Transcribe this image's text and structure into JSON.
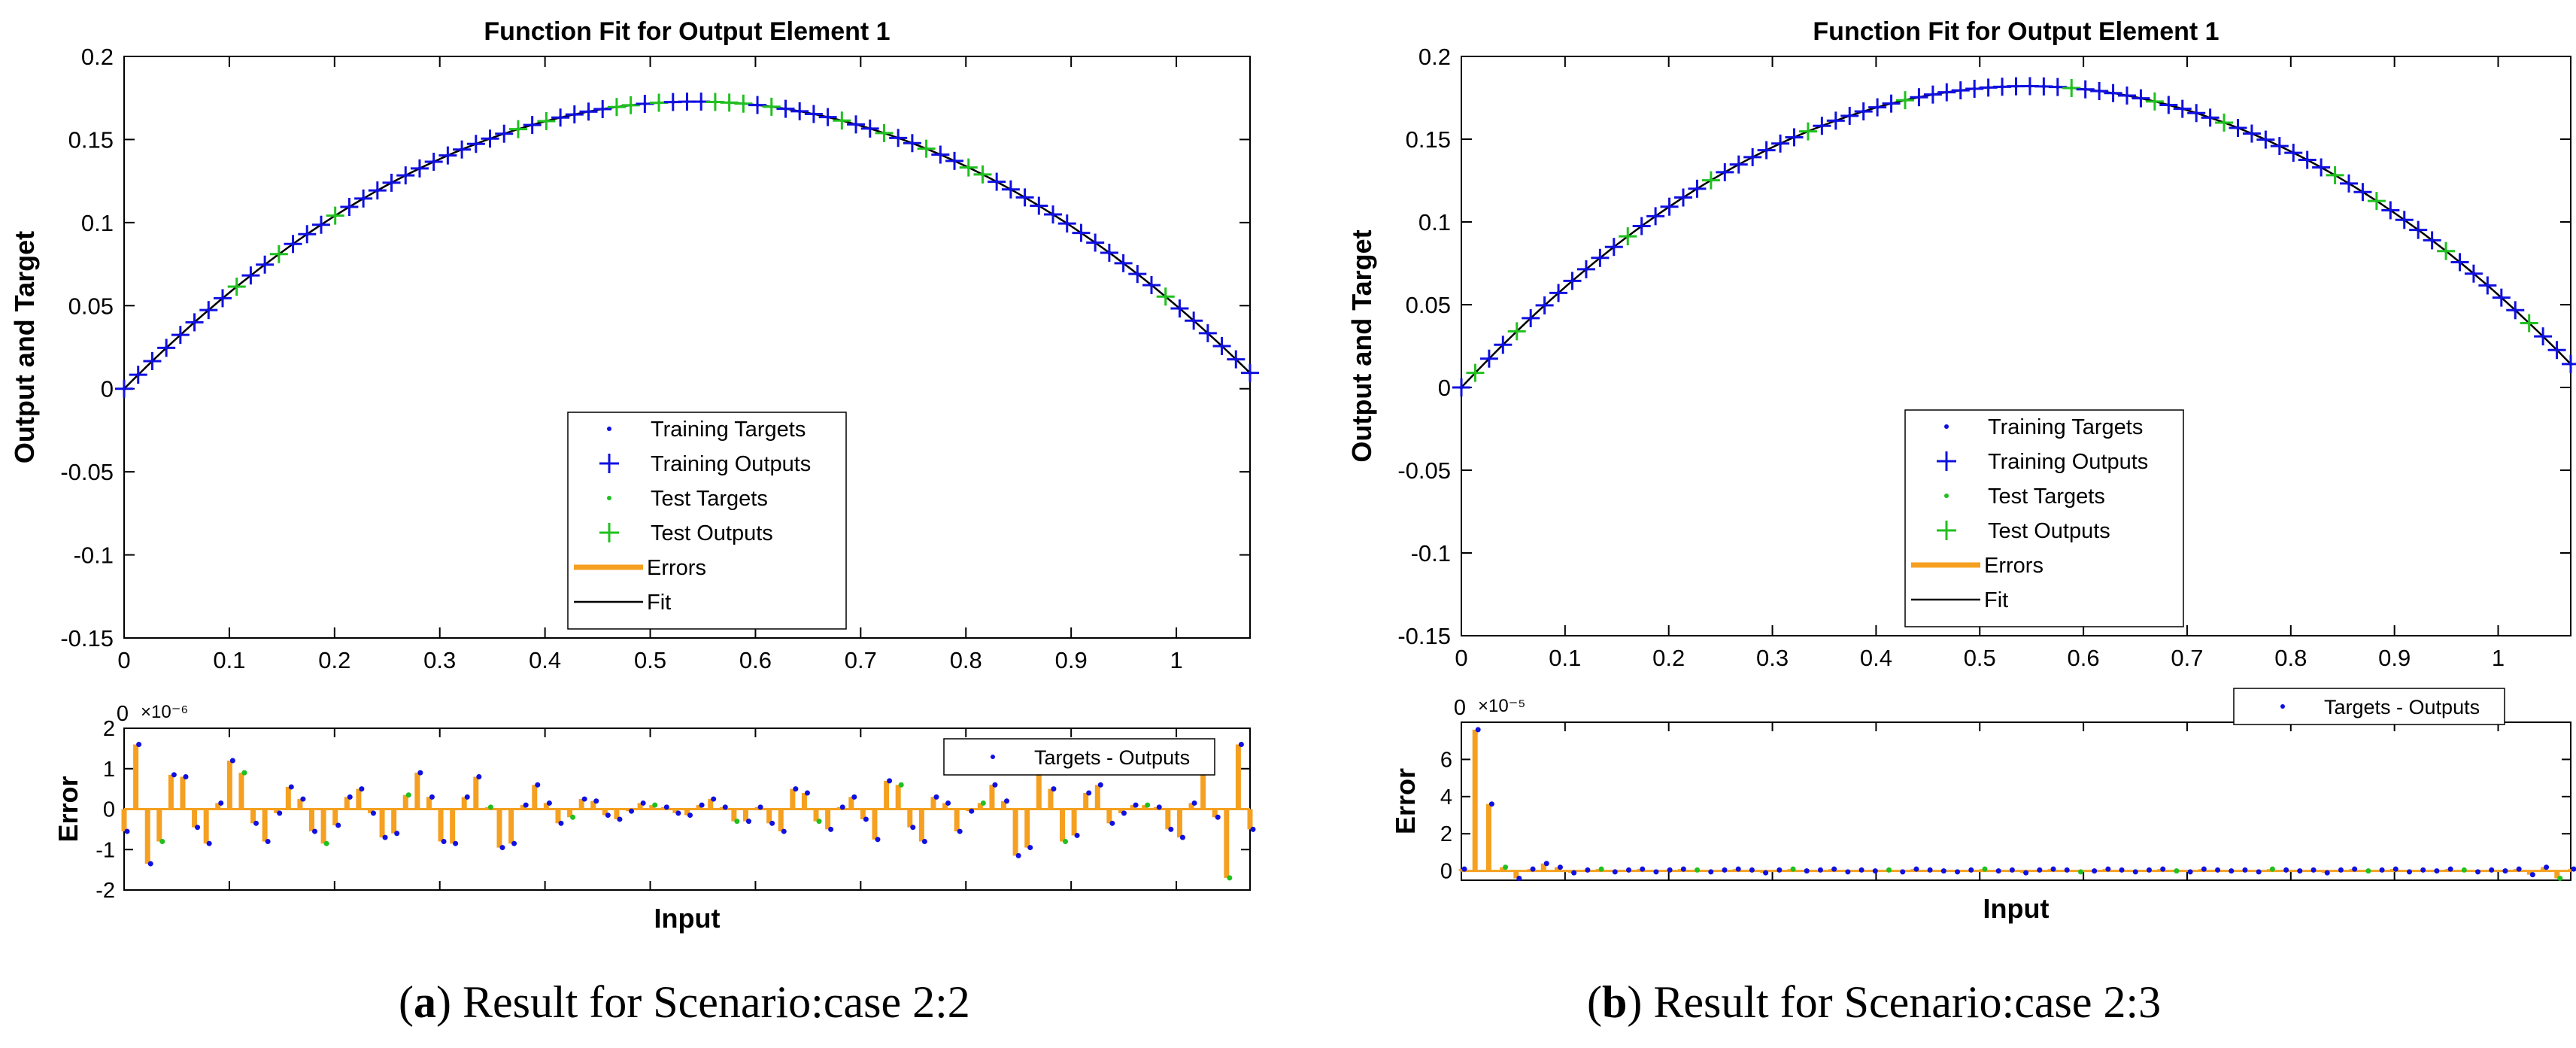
{
  "figure": {
    "panels": [
      {
        "caption_letter": "a",
        "caption_text": ") Result for Scenario:case 2:2",
        "caption_open": "(",
        "chart_data": {
          "type": "line",
          "title": "Function Fit for Output Element 1",
          "xlabel": "",
          "ylabel": "Output and Target",
          "xlim": [
            0,
            1.07
          ],
          "ylim": [
            -0.15,
            0.2
          ],
          "xticks": [
            "0",
            "0.1",
            "0.2",
            "0.3",
            "0.4",
            "0.5",
            "0.6",
            "0.7",
            "0.8",
            "0.9",
            "1"
          ],
          "xtick_values": [
            0,
            0.1,
            0.2,
            0.3,
            0.4,
            0.5,
            0.6,
            0.7,
            0.8,
            0.9,
            1.0
          ],
          "yticks": [
            "0.2",
            "0.15",
            "0.1",
            "0.05",
            "0",
            "-0.05",
            "-0.1",
            "-0.15"
          ],
          "ytick_values": [
            0.2,
            0.15,
            0.1,
            0.05,
            0,
            -0.05,
            -0.1,
            -0.15
          ],
          "fit_function": "y = 0.637*x - 0.587*x^2 (sampled at 81 points from 0 to 1.07)",
          "samples": 81,
          "test_indices": [
            8,
            11,
            15,
            28,
            30,
            35,
            36,
            38,
            42,
            43,
            44,
            46,
            51,
            54,
            57,
            60,
            61,
            74
          ],
          "legend": [
            "Training Targets",
            "Training Outputs",
            "Test Targets",
            "Test Outputs",
            "Errors",
            "Fit"
          ],
          "error_plot": {
            "ylabel": "Error",
            "xlabel": "Input",
            "exponent": "×10⁻⁶",
            "ylim": [
              -2,
              2
            ],
            "yticks": [
              "2",
              "1",
              "0",
              "-1",
              "-2"
            ],
            "ytick_values": [
              2,
              1,
              0,
              -1,
              -2
            ],
            "legend": "Targets - Outputs",
            "values": [
              -0.55,
              1.6,
              -1.35,
              -0.8,
              0.85,
              0.8,
              -0.45,
              -0.85,
              0.15,
              1.2,
              0.9,
              -0.35,
              -0.8,
              -0.1,
              0.55,
              0.25,
              -0.55,
              -0.85,
              -0.4,
              0.3,
              0.5,
              -0.1,
              -0.7,
              -0.6,
              0.35,
              0.9,
              0.3,
              -0.8,
              -0.85,
              0.3,
              0.8,
              0.05,
              -0.95,
              -0.85,
              0.1,
              0.6,
              0.15,
              -0.35,
              -0.2,
              0.25,
              0.2,
              -0.15,
              -0.25,
              -0.05,
              0.15,
              0.1,
              0.05,
              -0.1,
              -0.15,
              0.1,
              0.25,
              0.05,
              -0.3,
              -0.3,
              0.05,
              -0.35,
              -0.55,
              0.5,
              0.4,
              -0.3,
              -0.5,
              0.05,
              0.3,
              -0.25,
              -0.75,
              0.7,
              0.6,
              -0.45,
              -0.8,
              0.3,
              0.15,
              -0.55,
              -0.05,
              0.15,
              0.6,
              0.2,
              -1.15,
              -0.95,
              1.2,
              0.5,
              -0.8,
              -0.65,
              0.4,
              0.6,
              -0.35,
              -0.1,
              0.1,
              0.1,
              0.05,
              -0.5,
              -0.7,
              0.15,
              1.0,
              -0.2,
              -1.7,
              1.6,
              -0.5
            ]
          }
        }
      },
      {
        "caption_letter": "b",
        "caption_text": ") Result for Scenario:case 2:3",
        "caption_open": "(",
        "chart_data": {
          "type": "line",
          "title": "Function Fit for Output Element 1",
          "xlabel": "",
          "ylabel": "Output and Target",
          "xlim": [
            0,
            1.07
          ],
          "ylim": [
            -0.15,
            0.2
          ],
          "xticks": [
            "0",
            "0.1",
            "0.2",
            "0.3",
            "0.4",
            "0.5",
            "0.6",
            "0.7",
            "0.8",
            "0.9",
            "1"
          ],
          "xtick_values": [
            0,
            0.1,
            0.2,
            0.3,
            0.4,
            0.5,
            0.6,
            0.7,
            0.8,
            0.9,
            1.0
          ],
          "yticks": [
            "0.2",
            "0.15",
            "0.1",
            "0.05",
            "0",
            "-0.05",
            "-0.1",
            "-0.15"
          ],
          "ytick_values": [
            0.2,
            0.15,
            0.1,
            0.05,
            0,
            -0.05,
            -0.1,
            -0.15
          ],
          "fit_function": "y = 0.667*x - 0.611*x^2 (sampled at 81 points from 0 to 1.07)",
          "samples": 81,
          "test_indices": [
            1,
            4,
            12,
            18,
            25,
            32,
            44,
            50,
            55,
            63,
            66,
            71,
            77
          ],
          "legend": [
            "Training Targets",
            "Training Outputs",
            "Test Targets",
            "Test Outputs",
            "Errors",
            "Fit"
          ],
          "error_plot": {
            "ylabel": "Error",
            "xlabel": "Input",
            "exponent": "×10⁻⁵",
            "ylim": [
              -0.5,
              8
            ],
            "yticks": [
              "6",
              "4",
              "2",
              "0"
            ],
            "ytick_values": [
              6,
              4,
              2,
              0
            ],
            "legend": "Targets - Outputs",
            "values": [
              0.1,
              7.6,
              3.6,
              0.2,
              -0.4,
              0.1,
              0.4,
              0.2,
              -0.1,
              0.05,
              0.1,
              -0.05,
              0.05,
              0.1,
              -0.05,
              0.05,
              0.1,
              0.05,
              -0.05,
              0.05,
              0.1,
              0.05,
              -0.1,
              0.05,
              0.1,
              0.0,
              0.05,
              0.1,
              -0.05,
              0.05,
              0.0,
              0.05,
              -0.05,
              0.1,
              0.05,
              0.0,
              -0.05,
              0.05,
              0.1,
              0.0,
              0.05,
              -0.1,
              0.05,
              0.1,
              0.05,
              -0.05,
              0.0,
              0.1,
              0.05,
              -0.05,
              0.05,
              0.1,
              0.0,
              -0.05,
              0.1,
              0.05,
              0.0,
              0.05,
              -0.05,
              0.1,
              0.05,
              0.0,
              0.05,
              -0.1,
              0.05,
              0.1,
              0.0,
              0.05,
              0.1,
              -0.05,
              0.05,
              0.0,
              0.1,
              0.05,
              -0.05,
              0.05,
              0.0,
              0.1,
              -0.2,
              0.2,
              -0.4,
              0.1
            ]
          }
        }
      }
    ]
  }
}
